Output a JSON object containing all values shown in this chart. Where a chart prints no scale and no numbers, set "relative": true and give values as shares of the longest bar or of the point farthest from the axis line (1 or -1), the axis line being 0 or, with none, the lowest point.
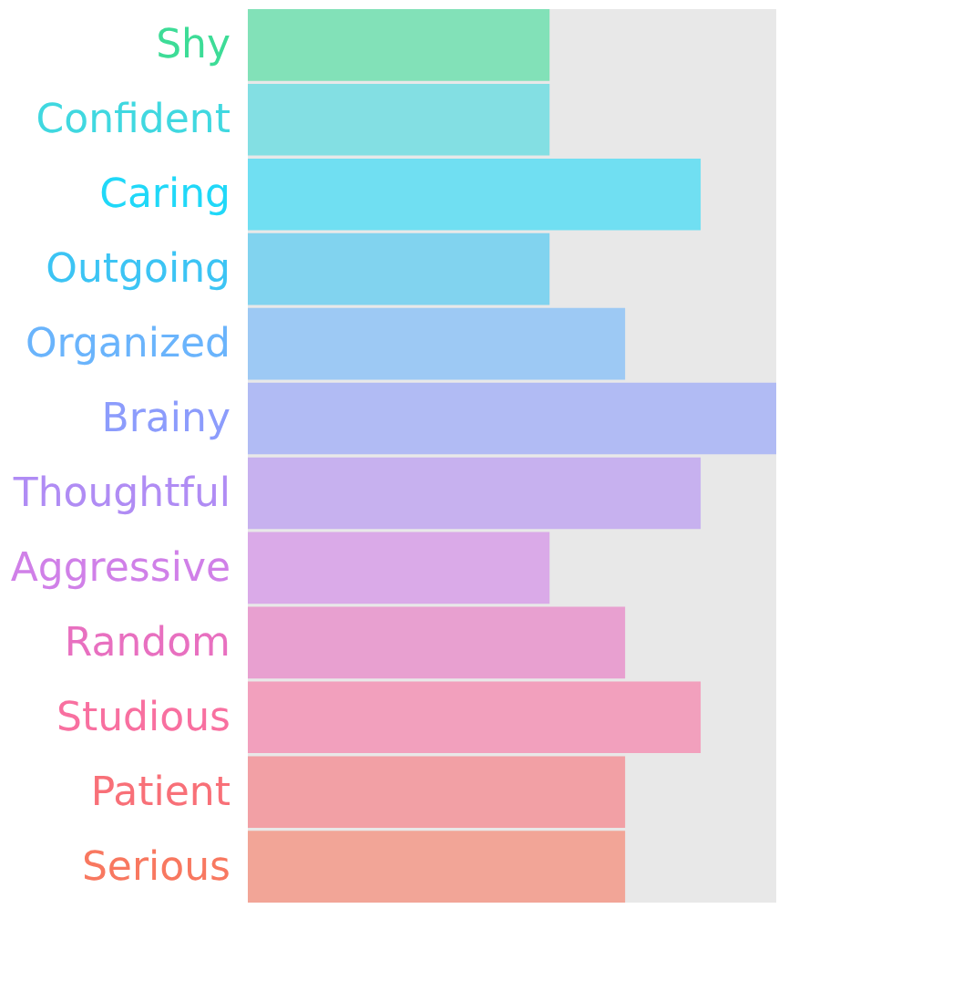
{
  "chart_data": {
    "type": "bar",
    "orientation": "horizontal",
    "relative": true,
    "categories": [
      "Shy",
      "Confident",
      "Caring",
      "Outgoing",
      "Organized",
      "Brainy",
      "Thoughtful",
      "Aggressive",
      "Random",
      "Studious",
      "Patient",
      "Serious"
    ],
    "values": [
      0.571,
      0.571,
      0.857,
      0.571,
      0.714,
      1,
      0.857,
      0.571,
      0.714,
      0.857,
      0.714,
      0.714
    ],
    "colors": [
      "#3ddc97",
      "#40d8e0",
      "#20d8f8",
      "#3cc4f4",
      "#6ab4fc",
      "#8c9cfc",
      "#b08cf4",
      "#d080e8",
      "#e870c0",
      "#f870a0",
      "#f87078",
      "#f87860"
    ],
    "grid": false
  }
}
